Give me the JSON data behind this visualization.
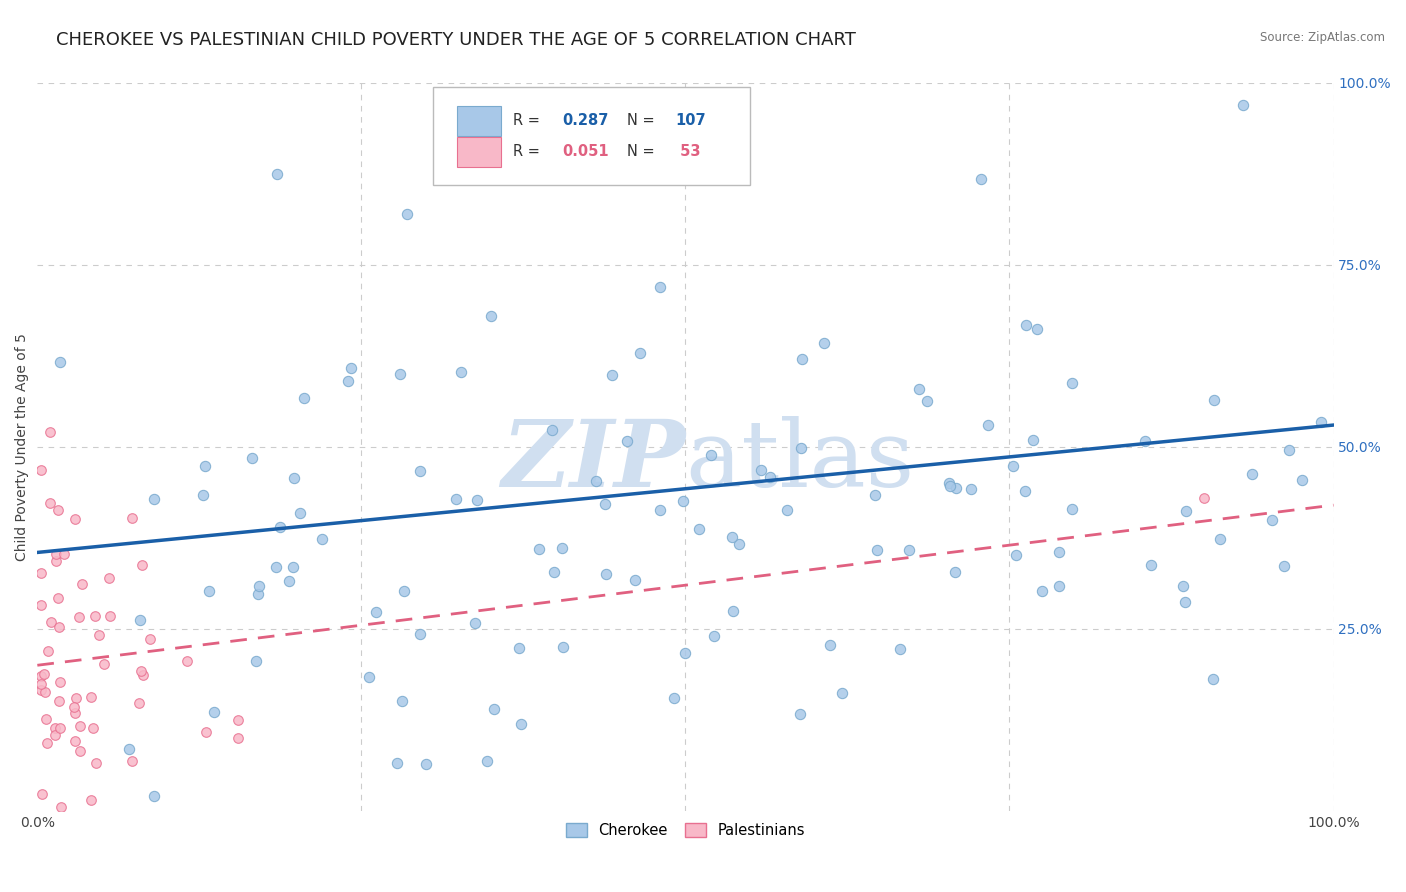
{
  "title": "CHEROKEE VS PALESTINIAN CHILD POVERTY UNDER THE AGE OF 5 CORRELATION CHART",
  "source": "Source: ZipAtlas.com",
  "ylabel": "Child Poverty Under the Age of 5",
  "cherokee_R": 0.287,
  "cherokee_N": 107,
  "palestinian_R": 0.051,
  "palestinian_N": 53,
  "cherokee_color": "#a8c8e8",
  "cherokee_edge_color": "#7aaace",
  "cherokee_line_color": "#1a5fa8",
  "palestinian_color": "#f8b8c8",
  "palestinian_edge_color": "#e87090",
  "palestinian_line_color": "#e06080",
  "background_color": "#ffffff",
  "grid_color": "#cccccc",
  "watermark_color": "#d0dff0",
  "legend_cherokee_label": "Cherokee",
  "legend_palestinian_label": "Palestinians",
  "xlim": [
    0.0,
    1.0
  ],
  "ylim": [
    0.0,
    1.0
  ],
  "title_fontsize": 13,
  "axis_label_fontsize": 10,
  "tick_fontsize": 10,
  "right_tick_color": "#3070c0"
}
